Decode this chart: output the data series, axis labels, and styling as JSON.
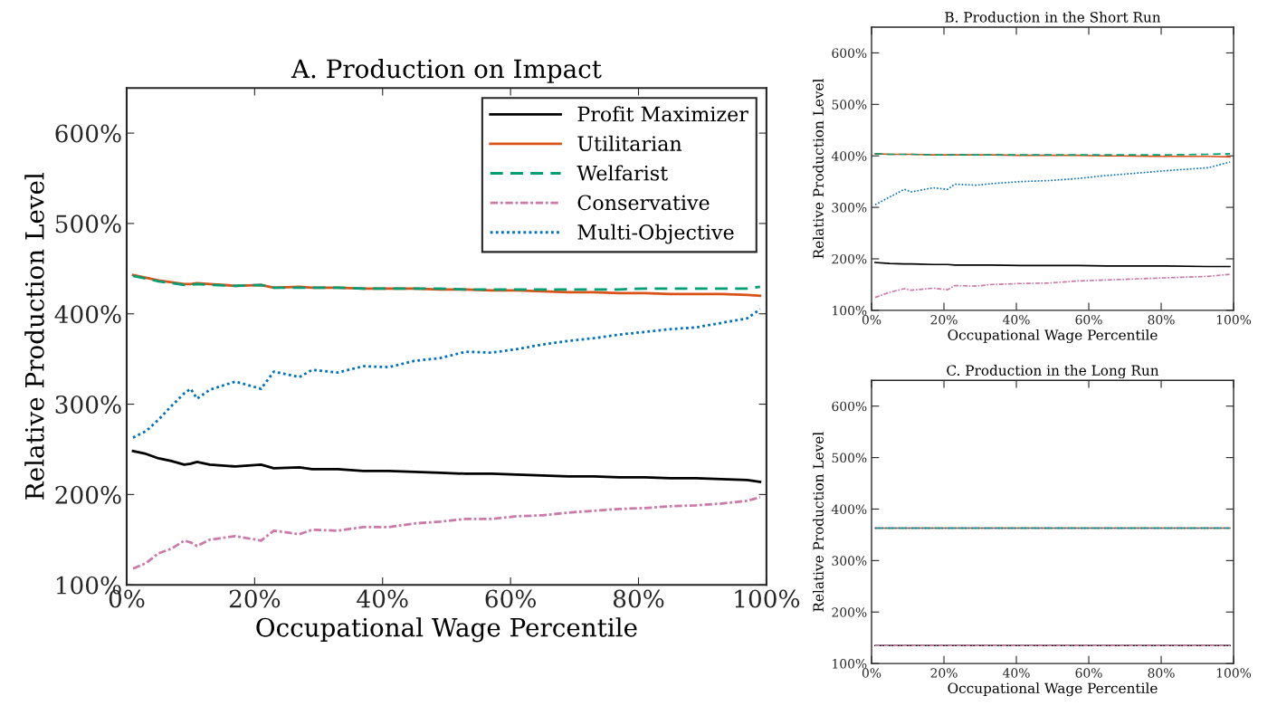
{
  "chart_data": [
    {
      "type": "line",
      "title": "A. Production on Impact",
      "xlabel": "Occupational Wage Percentile",
      "ylabel": "Relative Production Level",
      "x": [
        1,
        3,
        5,
        7,
        9,
        10,
        11,
        13,
        17,
        21,
        23,
        27,
        29,
        33,
        37,
        41,
        45,
        49,
        53,
        57,
        61,
        65,
        69,
        73,
        77,
        81,
        85,
        89,
        93,
        97,
        99
      ],
      "series": [
        {
          "name": "Profit Maximizer",
          "color": "#000000",
          "line_style": "solid",
          "values": [
            248,
            245,
            240,
            237,
            233,
            234,
            236,
            233,
            231,
            233,
            229,
            230,
            228,
            228,
            226,
            226,
            225,
            224,
            223,
            223,
            222,
            221,
            220,
            220,
            219,
            219,
            218,
            218,
            217,
            216,
            214
          ]
        },
        {
          "name": "Utilitarian",
          "color": "#d95319",
          "line_style": "solid",
          "values": [
            443,
            440,
            437,
            435,
            433,
            433,
            434,
            433,
            431,
            432,
            429,
            430,
            429,
            429,
            428,
            428,
            428,
            427,
            427,
            426,
            426,
            425,
            424,
            424,
            423,
            423,
            422,
            422,
            422,
            421,
            420
          ]
        },
        {
          "name": "Welfarist",
          "color": "#009e73",
          "line_style": "dashed",
          "values": [
            442,
            439,
            436,
            434,
            432,
            432,
            433,
            432,
            431,
            432,
            429,
            429,
            429,
            429,
            428,
            428,
            428,
            428,
            427,
            427,
            427,
            427,
            427,
            427,
            427,
            428,
            428,
            428,
            428,
            428,
            430
          ]
        },
        {
          "name": "Conservative",
          "color": "#cc79a7",
          "line_style": "dashdot",
          "values": [
            118,
            124,
            135,
            140,
            149,
            147,
            143,
            150,
            154,
            149,
            160,
            156,
            161,
            160,
            164,
            164,
            168,
            170,
            173,
            173,
            176,
            177,
            180,
            182,
            184,
            185,
            187,
            188,
            190,
            193,
            197
          ]
        },
        {
          "name": "Multi-Objective",
          "color": "#0072bd",
          "line_style": "dotted",
          "values": [
            263,
            270,
            283,
            298,
            312,
            317,
            306,
            316,
            325,
            317,
            336,
            330,
            338,
            335,
            342,
            341,
            348,
            351,
            358,
            357,
            361,
            366,
            370,
            373,
            377,
            380,
            383,
            385,
            390,
            395,
            405
          ]
        }
      ],
      "xlim": [
        0,
        100
      ],
      "ylim": [
        100,
        650
      ],
      "xticks": [
        {
          "value": 0,
          "label": "0%"
        },
        {
          "value": 20,
          "label": "20%"
        },
        {
          "value": 40,
          "label": "40%"
        },
        {
          "value": 60,
          "label": "60%"
        },
        {
          "value": 80,
          "label": "80%"
        },
        {
          "value": 100,
          "label": "100%"
        }
      ],
      "yticks": [
        {
          "value": 100,
          "label": "100%"
        },
        {
          "value": 200,
          "label": "200%"
        },
        {
          "value": 300,
          "label": "300%"
        },
        {
          "value": 400,
          "label": "400%"
        },
        {
          "value": 500,
          "label": "500%"
        },
        {
          "value": 600,
          "label": "600%"
        }
      ],
      "grid": false,
      "legend": "top right"
    },
    {
      "type": "line",
      "title": "B. Production in the Short Run",
      "xlabel": "Occupational Wage Percentile",
      "ylabel": "Relative Production Level",
      "x": [
        1,
        5,
        9,
        11,
        17,
        21,
        23,
        29,
        33,
        41,
        49,
        57,
        65,
        69,
        81,
        93,
        99
      ],
      "series": [
        {
          "color": "#000000",
          "line_style": "solid",
          "values": [
            193,
            191,
            190,
            190,
            189,
            189,
            188,
            188,
            188,
            187,
            187,
            187,
            186,
            186,
            186,
            185,
            185
          ]
        },
        {
          "color": "#d95319",
          "line_style": "solid",
          "values": [
            404,
            403,
            403,
            403,
            402,
            402,
            402,
            402,
            402,
            401,
            401,
            401,
            400,
            400,
            399,
            399,
            398
          ]
        },
        {
          "color": "#009e73",
          "line_style": "dashed",
          "values": [
            404,
            403,
            403,
            403,
            402,
            402,
            402,
            402,
            402,
            402,
            402,
            402,
            402,
            402,
            402,
            403,
            404
          ]
        },
        {
          "color": "#cc79a7",
          "line_style": "dashdot",
          "values": [
            125,
            135,
            142,
            139,
            143,
            140,
            148,
            147,
            150,
            152,
            153,
            157,
            159,
            160,
            163,
            166,
            170
          ]
        },
        {
          "color": "#0072bd",
          "line_style": "dotted",
          "values": [
            305,
            320,
            335,
            330,
            338,
            335,
            345,
            343,
            346,
            350,
            352,
            356,
            362,
            364,
            371,
            377,
            388
          ]
        }
      ],
      "xlim": [
        0,
        100
      ],
      "ylim": [
        100,
        650
      ],
      "xticks": [
        {
          "value": 0,
          "label": "0%"
        },
        {
          "value": 20,
          "label": "20%"
        },
        {
          "value": 40,
          "label": "40%"
        },
        {
          "value": 60,
          "label": "60%"
        },
        {
          "value": 80,
          "label": "80%"
        },
        {
          "value": 100,
          "label": "100%"
        }
      ],
      "yticks": [
        {
          "value": 100,
          "label": "100%"
        },
        {
          "value": 200,
          "label": "200%"
        },
        {
          "value": 300,
          "label": "300%"
        },
        {
          "value": 400,
          "label": "400%"
        },
        {
          "value": 500,
          "label": "500%"
        },
        {
          "value": 600,
          "label": "600%"
        }
      ],
      "grid": false
    },
    {
      "type": "line",
      "title": "C. Production in the Long Run",
      "xlabel": "Occupational Wage Percentile",
      "ylabel": "Relative Production Level",
      "x": [
        1,
        50,
        99
      ],
      "series": [
        {
          "color": "#000000",
          "line_style": "solid",
          "values": [
            135,
            135,
            135
          ]
        },
        {
          "color": "#d95319",
          "line_style": "solid",
          "values": [
            363,
            363,
            363
          ]
        },
        {
          "color": "#009e73",
          "line_style": "dashed",
          "values": [
            363,
            363,
            363
          ]
        },
        {
          "color": "#cc79a7",
          "line_style": "dashdot",
          "values": [
            135,
            135,
            135
          ]
        },
        {
          "color": "#0072bd",
          "line_style": "dotted",
          "values": [
            363,
            363,
            363
          ]
        }
      ],
      "xlim": [
        0,
        100
      ],
      "ylim": [
        100,
        650
      ],
      "xticks": [
        {
          "value": 0,
          "label": "0%"
        },
        {
          "value": 20,
          "label": "20%"
        },
        {
          "value": 40,
          "label": "40%"
        },
        {
          "value": 60,
          "label": "60%"
        },
        {
          "value": 80,
          "label": "80%"
        },
        {
          "value": 100,
          "label": "100%"
        }
      ],
      "yticks": [
        {
          "value": 100,
          "label": "100%"
        },
        {
          "value": 200,
          "label": "200%"
        },
        {
          "value": 300,
          "label": "300%"
        },
        {
          "value": 400,
          "label": "400%"
        },
        {
          "value": 500,
          "label": "500%"
        },
        {
          "value": 600,
          "label": "600%"
        }
      ],
      "grid": false
    }
  ]
}
